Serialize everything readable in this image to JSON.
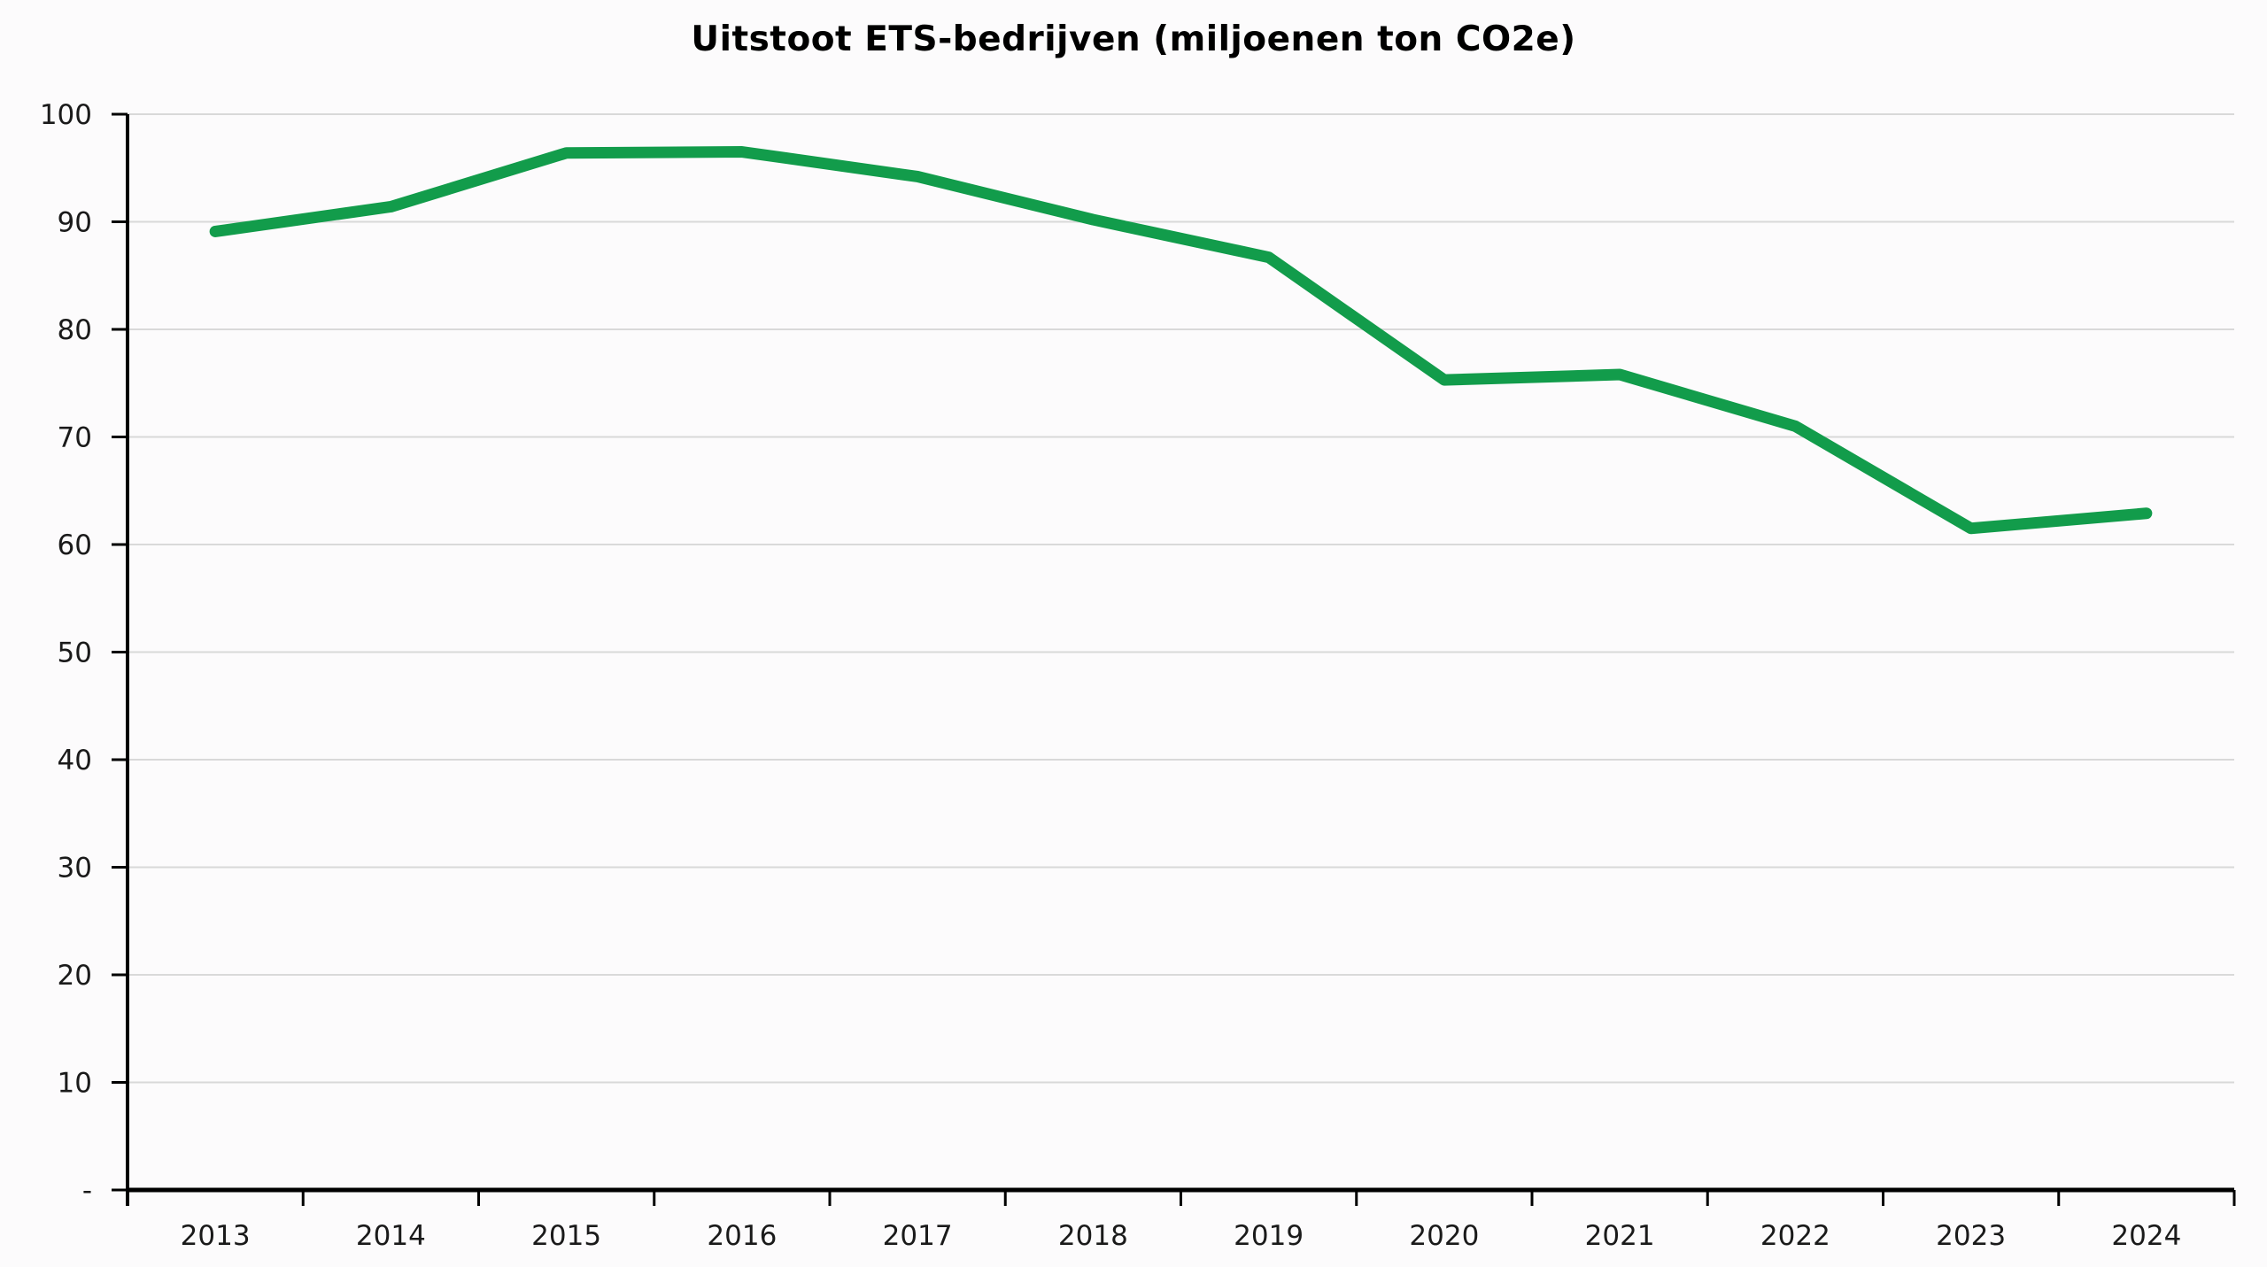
{
  "page": {
    "background_color": "#FCFBFC"
  },
  "chart_data": {
    "type": "line",
    "title": "Uitstoot ETS-bedrijven (miljoenen ton CO2e)",
    "categories": [
      "2013",
      "2014",
      "2015",
      "2016",
      "2017",
      "2018",
      "2019",
      "2020",
      "2021",
      "2022",
      "2023",
      "2024"
    ],
    "values": [
      89.1,
      91.4,
      96.4,
      96.5,
      94.2,
      90.2,
      86.7,
      75.3,
      75.8,
      71.0,
      61.5,
      62.9
    ],
    "xlabel": "",
    "ylabel": "",
    "ylim": [
      0,
      100
    ],
    "yticks": [
      0,
      10,
      20,
      30,
      40,
      50,
      60,
      70,
      80,
      90,
      100
    ],
    "ytick_labels": [
      "-",
      "10",
      "20",
      "30",
      "40",
      "50",
      "60",
      "70",
      "80",
      "90",
      "100"
    ],
    "grid": true,
    "legend_position": "none",
    "line_color": "#129C4B",
    "grid_color": "#D9D9D9",
    "axis_color": "#000000",
    "text_color": "#1A1A1A"
  }
}
